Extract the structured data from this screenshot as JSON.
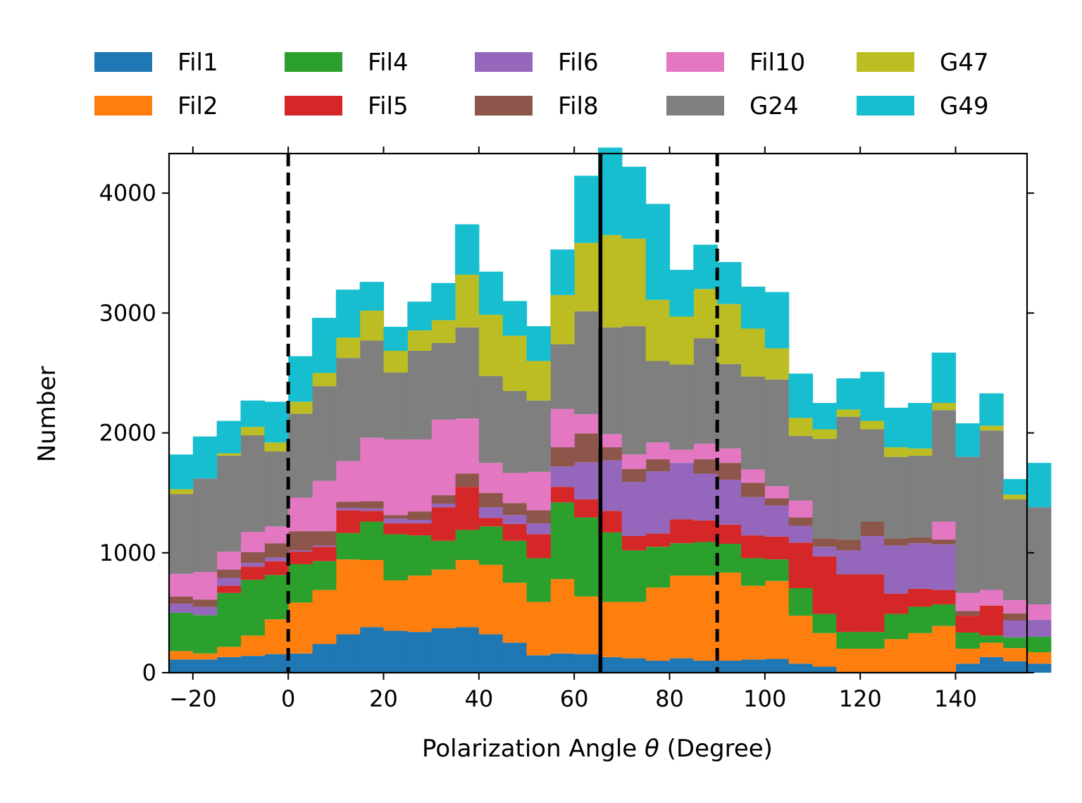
{
  "chart_data": {
    "type": "bar",
    "stacked": true,
    "histogram": true,
    "xlabel_main": "Polarization Angle ",
    "xlabel_symbol": "θ",
    "xlabel_unit": " (Degree)",
    "ylabel": "Number",
    "xlim": [
      -25,
      155
    ],
    "ylim": [
      0,
      4330
    ],
    "xticks": [
      -20,
      0,
      20,
      40,
      60,
      80,
      100,
      120,
      140
    ],
    "xtick_labels": [
      "−20",
      "0",
      "20",
      "40",
      "60",
      "80",
      "100",
      "120",
      "140"
    ],
    "yticks": [
      0,
      1000,
      2000,
      3000,
      4000
    ],
    "ytick_labels": [
      "0",
      "1000",
      "2000",
      "3000",
      "4000"
    ],
    "bin_start": -25,
    "bin_width": 5,
    "vlines": [
      {
        "x": 0,
        "style": "dashed"
      },
      {
        "x": 65.5,
        "style": "solid"
      },
      {
        "x": 90,
        "style": "dashed"
      }
    ],
    "legend_position": "top",
    "series": [
      {
        "name": "Fil1",
        "color": "#1f77b4",
        "values": [
          110,
          110,
          130,
          140,
          155,
          160,
          240,
          320,
          380,
          350,
          340,
          370,
          380,
          320,
          250,
          145,
          160,
          155,
          130,
          120,
          100,
          120,
          100,
          100,
          110,
          115,
          75,
          50,
          0,
          0,
          0,
          0,
          0,
          75,
          130,
          95,
          75
        ]
      },
      {
        "name": "Fil2",
        "color": "#ff7f0e",
        "values": [
          70,
          50,
          85,
          170,
          290,
          425,
          450,
          625,
          560,
          420,
          470,
          490,
          560,
          580,
          500,
          445,
          620,
          480,
          460,
          470,
          610,
          690,
          710,
          735,
          615,
          650,
          400,
          280,
          200,
          200,
          280,
          330,
          390,
          125,
          120,
          110,
          95
        ]
      },
      {
        "name": "Fil4",
        "color": "#2ca02c",
        "values": [
          320,
          320,
          450,
          465,
          370,
          320,
          240,
          220,
          320,
          385,
          335,
          240,
          250,
          320,
          350,
          365,
          640,
          660,
          580,
          430,
          340,
          270,
          280,
          240,
          230,
          180,
          230,
          160,
          140,
          140,
          210,
          220,
          180,
          135,
          60,
          90,
          130
        ]
      },
      {
        "name": "Fil5",
        "color": "#d62728",
        "values": [
          0,
          0,
          60,
          110,
          115,
          105,
          120,
          190,
          90,
          90,
          100,
          280,
          360,
          70,
          140,
          200,
          130,
          150,
          180,
          120,
          110,
          200,
          180,
          160,
          190,
          190,
          380,
          480,
          480,
          480,
          170,
          150,
          120,
          140,
          250,
          0,
          0
        ]
      },
      {
        "name": "Fil6",
        "color": "#9467bd",
        "values": [
          75,
          70,
          65,
          30,
          30,
          10,
          10,
          20,
          20,
          40,
          30,
          30,
          0,
          90,
          75,
          90,
          170,
          310,
          420,
          450,
          520,
          470,
          390,
          375,
          320,
          260,
          140,
          80,
          200,
          320,
          400,
          380,
          380,
          0,
          0,
          140,
          140
        ]
      },
      {
        "name": "Fil8",
        "color": "#8c564b",
        "values": [
          60,
          60,
          70,
          90,
          120,
          160,
          120,
          50,
          60,
          30,
          70,
          70,
          110,
          120,
          100,
          110,
          160,
          240,
          110,
          110,
          100,
          0,
          120,
          140,
          120,
          60,
          70,
          70,
          90,
          120,
          60,
          50,
          40,
          40,
          0,
          60,
          0
        ]
      },
      {
        "name": "Fil10",
        "color": "#e377c2",
        "values": [
          190,
          230,
          150,
          170,
          140,
          280,
          420,
          340,
          530,
          630,
          600,
          630,
          460,
          250,
          250,
          320,
          320,
          160,
          110,
          120,
          140,
          110,
          130,
          120,
          110,
          100,
          140,
          0,
          0,
          0,
          0,
          0,
          150,
          150,
          130,
          110,
          130
        ]
      },
      {
        "name": "G24",
        "color": "#7f7f7f",
        "values": [
          665,
          780,
          800,
          805,
          625,
          700,
          790,
          860,
          810,
          560,
          740,
          640,
          760,
          725,
          685,
          595,
          540,
          860,
          890,
          1070,
          680,
          710,
          880,
          705,
          775,
          890,
          540,
          830,
          1025,
          770,
          680,
          680,
          930,
          1135,
          1330,
          840,
          810
        ]
      },
      {
        "name": "G47",
        "color": "#bcbd22",
        "values": [
          40,
          0,
          20,
          70,
          75,
          100,
          110,
          170,
          250,
          180,
          170,
          190,
          440,
          510,
          460,
          330,
          410,
          570,
          770,
          730,
          510,
          400,
          410,
          500,
          400,
          260,
          150,
          80,
          60,
          70,
          80,
          60,
          60,
          0,
          40,
          40,
          0
        ]
      },
      {
        "name": "G49",
        "color": "#17becf",
        "values": [
          290,
          350,
          270,
          220,
          340,
          380,
          460,
          400,
          240,
          200,
          240,
          310,
          420,
          360,
          290,
          290,
          380,
          560,
          730,
          600,
          800,
          390,
          370,
          350,
          350,
          470,
          370,
          220,
          260,
          410,
          330,
          380,
          420,
          280,
          270,
          130,
          370
        ]
      }
    ]
  }
}
